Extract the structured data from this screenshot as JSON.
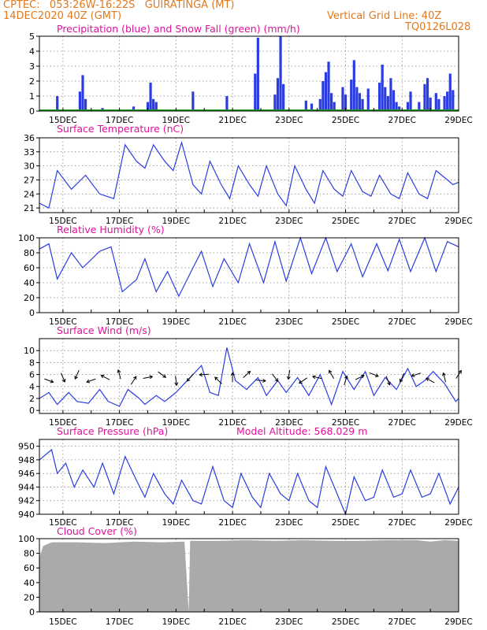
{
  "header": {
    "line1_left": "CPTEC:   053:26W-16:22S   GUIRATINGA (MT)",
    "line2_left": "14DEC2020 40Z (GMT)",
    "line2_right": "Vertical Grid Line: 40Z",
    "line3_right": "TQ0126L028"
  },
  "panels": {
    "precip": {
      "title": "Precipitation (blue) and Snow Fall (green) (mm/h)"
    },
    "temp": {
      "title": "Surface Temperature (nC)"
    },
    "rh": {
      "title": "Relative Humidity (%)"
    },
    "wind": {
      "title": "Surface Wind (m/s)"
    },
    "pres": {
      "title": "Surface Pressure (hPa)",
      "altitude_label": "Model Altitude: 568.029 m"
    },
    "cloud": {
      "title": "Cloud Cover (%)"
    }
  },
  "colors": {
    "line": "#2b3de0",
    "precip": "#2b3de0",
    "snow": "#18a018",
    "cloud": "#aaaaaa",
    "title": "#e0129a",
    "header": "#e07a1e"
  },
  "chart_data": [
    {
      "type": "bar",
      "name": "precipitation",
      "x_ticks": [
        "15DEC",
        "17DEC",
        "19DEC",
        "21DEC",
        "23DEC",
        "25DEC",
        "27DEC",
        "29DEC"
      ],
      "xlim_days": [
        14.1667,
        29.0
      ],
      "ylim": [
        0,
        5
      ],
      "yticks": [
        0,
        1,
        2,
        3,
        4,
        5
      ],
      "bars": [
        [
          14.8,
          1.0
        ],
        [
          15.6,
          1.3
        ],
        [
          15.7,
          2.4
        ],
        [
          15.8,
          0.8
        ],
        [
          16.4,
          0.2
        ],
        [
          17.5,
          0.3
        ],
        [
          18.0,
          0.6
        ],
        [
          18.1,
          1.9
        ],
        [
          18.2,
          0.8
        ],
        [
          18.3,
          0.6
        ],
        [
          19.6,
          1.3
        ],
        [
          20.8,
          1.0
        ],
        [
          21.8,
          2.5
        ],
        [
          21.9,
          4.9
        ],
        [
          22.5,
          1.1
        ],
        [
          22.6,
          2.2
        ],
        [
          22.7,
          5.0
        ],
        [
          22.8,
          1.8
        ],
        [
          23.6,
          0.7
        ],
        [
          23.8,
          0.5
        ],
        [
          24.1,
          0.8
        ],
        [
          24.2,
          2.0
        ],
        [
          24.3,
          2.6
        ],
        [
          24.4,
          3.3
        ],
        [
          24.5,
          1.2
        ],
        [
          24.6,
          0.6
        ],
        [
          24.9,
          1.6
        ],
        [
          25.0,
          1.1
        ],
        [
          25.2,
          2.1
        ],
        [
          25.3,
          3.4
        ],
        [
          25.4,
          1.6
        ],
        [
          25.5,
          1.2
        ],
        [
          25.6,
          0.8
        ],
        [
          25.8,
          1.5
        ],
        [
          26.2,
          1.9
        ],
        [
          26.3,
          3.1
        ],
        [
          26.4,
          1.6
        ],
        [
          26.5,
          1.0
        ],
        [
          26.6,
          2.2
        ],
        [
          26.7,
          1.4
        ],
        [
          26.8,
          0.6
        ],
        [
          26.9,
          0.3
        ],
        [
          27.2,
          0.6
        ],
        [
          27.3,
          1.3
        ],
        [
          27.6,
          0.6
        ],
        [
          27.8,
          1.8
        ],
        [
          27.9,
          2.2
        ],
        [
          28.0,
          0.9
        ],
        [
          28.2,
          1.2
        ],
        [
          28.3,
          0.8
        ],
        [
          28.5,
          1.0
        ],
        [
          28.6,
          1.3
        ],
        [
          28.7,
          2.5
        ],
        [
          28.8,
          1.4
        ]
      ],
      "snow": "0 throughout"
    },
    {
      "type": "line",
      "name": "surface temperature",
      "ylim": [
        20,
        36
      ],
      "yticks": [
        21,
        24,
        27,
        30,
        33,
        36
      ],
      "points": [
        [
          14.17,
          22
        ],
        [
          14.5,
          21
        ],
        [
          14.8,
          29
        ],
        [
          15.3,
          25
        ],
        [
          15.8,
          28
        ],
        [
          16.3,
          24
        ],
        [
          16.8,
          23
        ],
        [
          17.2,
          34.5
        ],
        [
          17.6,
          31
        ],
        [
          17.9,
          29.5
        ],
        [
          18.2,
          34.5
        ],
        [
          18.6,
          31
        ],
        [
          18.9,
          29
        ],
        [
          19.2,
          35
        ],
        [
          19.6,
          26
        ],
        [
          19.9,
          24
        ],
        [
          20.2,
          31
        ],
        [
          20.6,
          26
        ],
        [
          20.9,
          23
        ],
        [
          21.2,
          30
        ],
        [
          21.6,
          26
        ],
        [
          21.9,
          23.5
        ],
        [
          22.2,
          30
        ],
        [
          22.6,
          24
        ],
        [
          22.9,
          21.5
        ],
        [
          23.2,
          30
        ],
        [
          23.6,
          25
        ],
        [
          23.9,
          22
        ],
        [
          24.2,
          29
        ],
        [
          24.6,
          25
        ],
        [
          24.9,
          23.5
        ],
        [
          25.2,
          29
        ],
        [
          25.6,
          24.5
        ],
        [
          25.9,
          23.5
        ],
        [
          26.2,
          28
        ],
        [
          26.6,
          24
        ],
        [
          26.9,
          23
        ],
        [
          27.2,
          28.5
        ],
        [
          27.6,
          24
        ],
        [
          27.9,
          23
        ],
        [
          28.2,
          29
        ],
        [
          28.6,
          27
        ],
        [
          28.8,
          26
        ],
        [
          29,
          26.5
        ]
      ]
    },
    {
      "type": "line",
      "name": "relative humidity",
      "ylim": [
        0,
        100
      ],
      "yticks": [
        0,
        20,
        40,
        60,
        80,
        100
      ],
      "points": [
        [
          14.17,
          85
        ],
        [
          14.5,
          92
        ],
        [
          14.8,
          45
        ],
        [
          15.3,
          80
        ],
        [
          15.7,
          60
        ],
        [
          16.3,
          82
        ],
        [
          16.7,
          88
        ],
        [
          17.1,
          28
        ],
        [
          17.6,
          44
        ],
        [
          17.9,
          72
        ],
        [
          18.3,
          28
        ],
        [
          18.7,
          55
        ],
        [
          19.1,
          22
        ],
        [
          19.6,
          60
        ],
        [
          19.9,
          82
        ],
        [
          20.3,
          35
        ],
        [
          20.7,
          72
        ],
        [
          21.2,
          40
        ],
        [
          21.6,
          92
        ],
        [
          22.1,
          40
        ],
        [
          22.5,
          95
        ],
        [
          22.9,
          42
        ],
        [
          23.4,
          100
        ],
        [
          23.8,
          52
        ],
        [
          24.3,
          100
        ],
        [
          24.7,
          55
        ],
        [
          25.2,
          92
        ],
        [
          25.6,
          48
        ],
        [
          26.1,
          92
        ],
        [
          26.5,
          56
        ],
        [
          26.9,
          98
        ],
        [
          27.3,
          55
        ],
        [
          27.8,
          100
        ],
        [
          28.2,
          55
        ],
        [
          28.6,
          95
        ],
        [
          29,
          88
        ]
      ]
    },
    {
      "type": "line",
      "name": "surface wind",
      "ylim": [
        -0.5,
        12
      ],
      "yticks": [
        0,
        2,
        4,
        6,
        8,
        10
      ],
      "points": [
        [
          14.17,
          2
        ],
        [
          14.5,
          3
        ],
        [
          14.8,
          1
        ],
        [
          15.2,
          3
        ],
        [
          15.5,
          1.5
        ],
        [
          15.9,
          1.2
        ],
        [
          16.3,
          3.5
        ],
        [
          16.6,
          1.5
        ],
        [
          17.0,
          0.7
        ],
        [
          17.3,
          3.5
        ],
        [
          17.7,
          2
        ],
        [
          17.9,
          1
        ],
        [
          18.3,
          2.5
        ],
        [
          18.6,
          1.5
        ],
        [
          19.0,
          3
        ],
        [
          19.4,
          5
        ],
        [
          19.9,
          7.5
        ],
        [
          20.2,
          3
        ],
        [
          20.5,
          2.5
        ],
        [
          20.8,
          10.5
        ],
        [
          21.1,
          5
        ],
        [
          21.5,
          3.5
        ],
        [
          21.9,
          5.5
        ],
        [
          22.2,
          2.5
        ],
        [
          22.6,
          5
        ],
        [
          22.9,
          3
        ],
        [
          23.3,
          5.5
        ],
        [
          23.7,
          2.5
        ],
        [
          24.1,
          6
        ],
        [
          24.5,
          1
        ],
        [
          24.9,
          6.5
        ],
        [
          25.3,
          3.5
        ],
        [
          25.7,
          6.5
        ],
        [
          26.0,
          2.5
        ],
        [
          26.4,
          5.5
        ],
        [
          26.8,
          3.5
        ],
        [
          27.2,
          7
        ],
        [
          27.5,
          4
        ],
        [
          27.8,
          5
        ],
        [
          28.1,
          6.5
        ],
        [
          28.5,
          4.5
        ],
        [
          28.9,
          1.5
        ],
        [
          29,
          2
        ]
      ],
      "vectors_days": [
        14.5,
        15.0,
        15.5,
        16.0,
        16.5,
        17.0,
        17.5,
        18.0,
        18.5,
        19.0,
        19.5,
        20.0,
        20.5,
        21.0,
        21.5,
        22.0,
        22.5,
        23.0,
        23.5,
        24.0,
        24.5,
        25.0,
        25.5,
        26.0,
        26.5,
        27.0,
        27.5,
        28.0,
        28.5,
        29.0
      ]
    },
    {
      "type": "line",
      "name": "surface pressure",
      "ylim": [
        940,
        951
      ],
      "yticks": [
        940,
        942,
        944,
        946,
        948,
        950
      ],
      "points": [
        [
          14.17,
          948
        ],
        [
          14.6,
          949.5
        ],
        [
          14.8,
          946
        ],
        [
          15.1,
          947.5
        ],
        [
          15.4,
          944
        ],
        [
          15.7,
          946.5
        ],
        [
          16.1,
          944
        ],
        [
          16.4,
          947.5
        ],
        [
          16.8,
          943
        ],
        [
          17.2,
          948.5
        ],
        [
          17.6,
          945
        ],
        [
          17.9,
          942.5
        ],
        [
          18.2,
          946
        ],
        [
          18.6,
          943
        ],
        [
          18.9,
          941.5
        ],
        [
          19.2,
          945
        ],
        [
          19.6,
          942
        ],
        [
          19.9,
          941.5
        ],
        [
          20.3,
          947
        ],
        [
          20.7,
          942
        ],
        [
          21.0,
          941
        ],
        [
          21.3,
          946
        ],
        [
          21.7,
          942.5
        ],
        [
          22.0,
          941
        ],
        [
          22.3,
          946
        ],
        [
          22.7,
          943
        ],
        [
          23.0,
          942
        ],
        [
          23.3,
          946
        ],
        [
          23.7,
          942
        ],
        [
          24.0,
          941
        ],
        [
          24.3,
          947
        ],
        [
          24.7,
          943
        ],
        [
          25.0,
          940
        ],
        [
          25.3,
          945.5
        ],
        [
          25.7,
          942
        ],
        [
          26.0,
          942.5
        ],
        [
          26.3,
          946.5
        ],
        [
          26.7,
          942.5
        ],
        [
          27.0,
          943
        ],
        [
          27.3,
          946.5
        ],
        [
          27.7,
          942.5
        ],
        [
          28.0,
          943
        ],
        [
          28.3,
          946
        ],
        [
          28.7,
          941.5
        ],
        [
          29,
          944
        ]
      ]
    },
    {
      "type": "area",
      "name": "cloud cover",
      "ylim": [
        0,
        100
      ],
      "yticks": [
        0,
        20,
        40,
        60,
        80,
        100
      ],
      "points": [
        [
          14.17,
          75
        ],
        [
          14.3,
          90
        ],
        [
          14.6,
          95
        ],
        [
          15.5,
          95
        ],
        [
          16.5,
          94
        ],
        [
          17.5,
          96
        ],
        [
          18.5,
          95
        ],
        [
          19.3,
          96
        ],
        [
          19.45,
          0
        ],
        [
          19.5,
          97
        ],
        [
          20.5,
          97
        ],
        [
          21.5,
          98
        ],
        [
          22.5,
          97
        ],
        [
          23.5,
          98
        ],
        [
          24.5,
          97
        ],
        [
          25.5,
          97
        ],
        [
          26.5,
          98
        ],
        [
          27.5,
          98
        ],
        [
          28.0,
          96
        ],
        [
          28.5,
          98
        ],
        [
          29,
          97
        ]
      ]
    }
  ]
}
